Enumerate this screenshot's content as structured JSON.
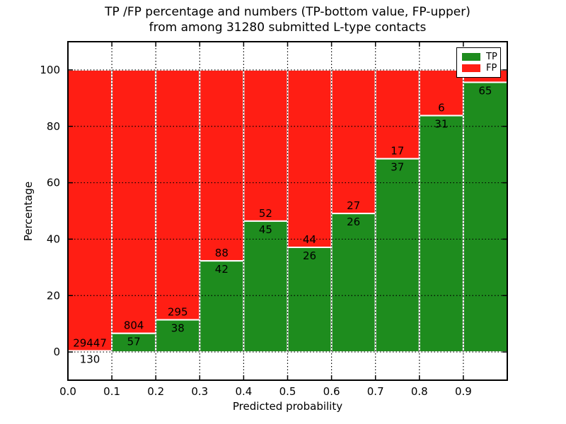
{
  "figure": {
    "title_line1": "TP /FP percentage and numbers (TP-bottom value, FP-upper)",
    "title_line2": "from among 31280 submitted L-type contacts"
  },
  "chart_data": {
    "type": "bar",
    "stacked": true,
    "title": "TP /FP percentage and numbers (TP-bottom value, FP-upper)\nfrom among 31280 submitted L-type contacts",
    "xlabel": "Predicted probability",
    "ylabel": "Percentage",
    "xlim": [
      0.0,
      1.0
    ],
    "ylim": [
      -10,
      110
    ],
    "grid": "dotted",
    "bin_edges": [
      0.0,
      0.1,
      0.2,
      0.3,
      0.4,
      0.5,
      0.6,
      0.7,
      0.8,
      0.9,
      1.0
    ],
    "xtick_labels": [
      "0.0",
      "0.1",
      "0.2",
      "0.3",
      "0.4",
      "0.5",
      "0.6",
      "0.7",
      "0.8",
      "0.9"
    ],
    "ytick_values": [
      0,
      20,
      40,
      60,
      80,
      100
    ],
    "tp_counts": [
      130,
      57,
      38,
      42,
      45,
      26,
      26,
      37,
      31,
      65
    ],
    "fp_labels": [
      "29447",
      "804",
      "295",
      "88",
      "52",
      "44",
      "27",
      "17",
      "6",
      ""
    ],
    "tp_pct": [
      0.4,
      6.6,
      11.4,
      32.3,
      46.4,
      37.1,
      49.1,
      68.5,
      83.8,
      95.6
    ],
    "colors": {
      "tp": "#1e8c1e",
      "fp": "#ff1e14",
      "bar_edge": "#ffffff",
      "grid": "#000000",
      "frame": "#000000"
    },
    "legend": {
      "entries": [
        {
          "label": "TP",
          "color": "#1e8c1e"
        },
        {
          "label": "FP",
          "color": "#ff1e14"
        }
      ]
    }
  }
}
